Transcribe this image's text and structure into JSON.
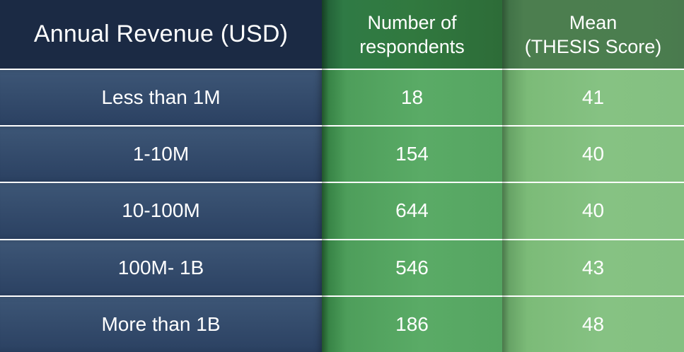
{
  "chart_data": {
    "type": "table",
    "columns": [
      {
        "line1": "Annual Revenue (USD)",
        "line2": ""
      },
      {
        "line1": "Number of",
        "line2": "respondents"
      },
      {
        "line1": "Mean",
        "line2": "(THESIS Score)"
      }
    ],
    "rows": [
      {
        "revenue": "Less than 1M",
        "respondents": "18",
        "mean": "41"
      },
      {
        "revenue": "1-10M",
        "respondents": "154",
        "mean": "40"
      },
      {
        "revenue": "10-100M",
        "respondents": "644",
        "mean": "40"
      },
      {
        "revenue": "100M- 1B",
        "respondents": "546",
        "mean": "43"
      },
      {
        "revenue": "More than 1B",
        "respondents": "186",
        "mean": "48"
      }
    ]
  },
  "colors": {
    "revenue_column": "#2b4162",
    "respondents_column": "#56a562",
    "mean_column": "#84c081",
    "text": "#ffffff"
  }
}
